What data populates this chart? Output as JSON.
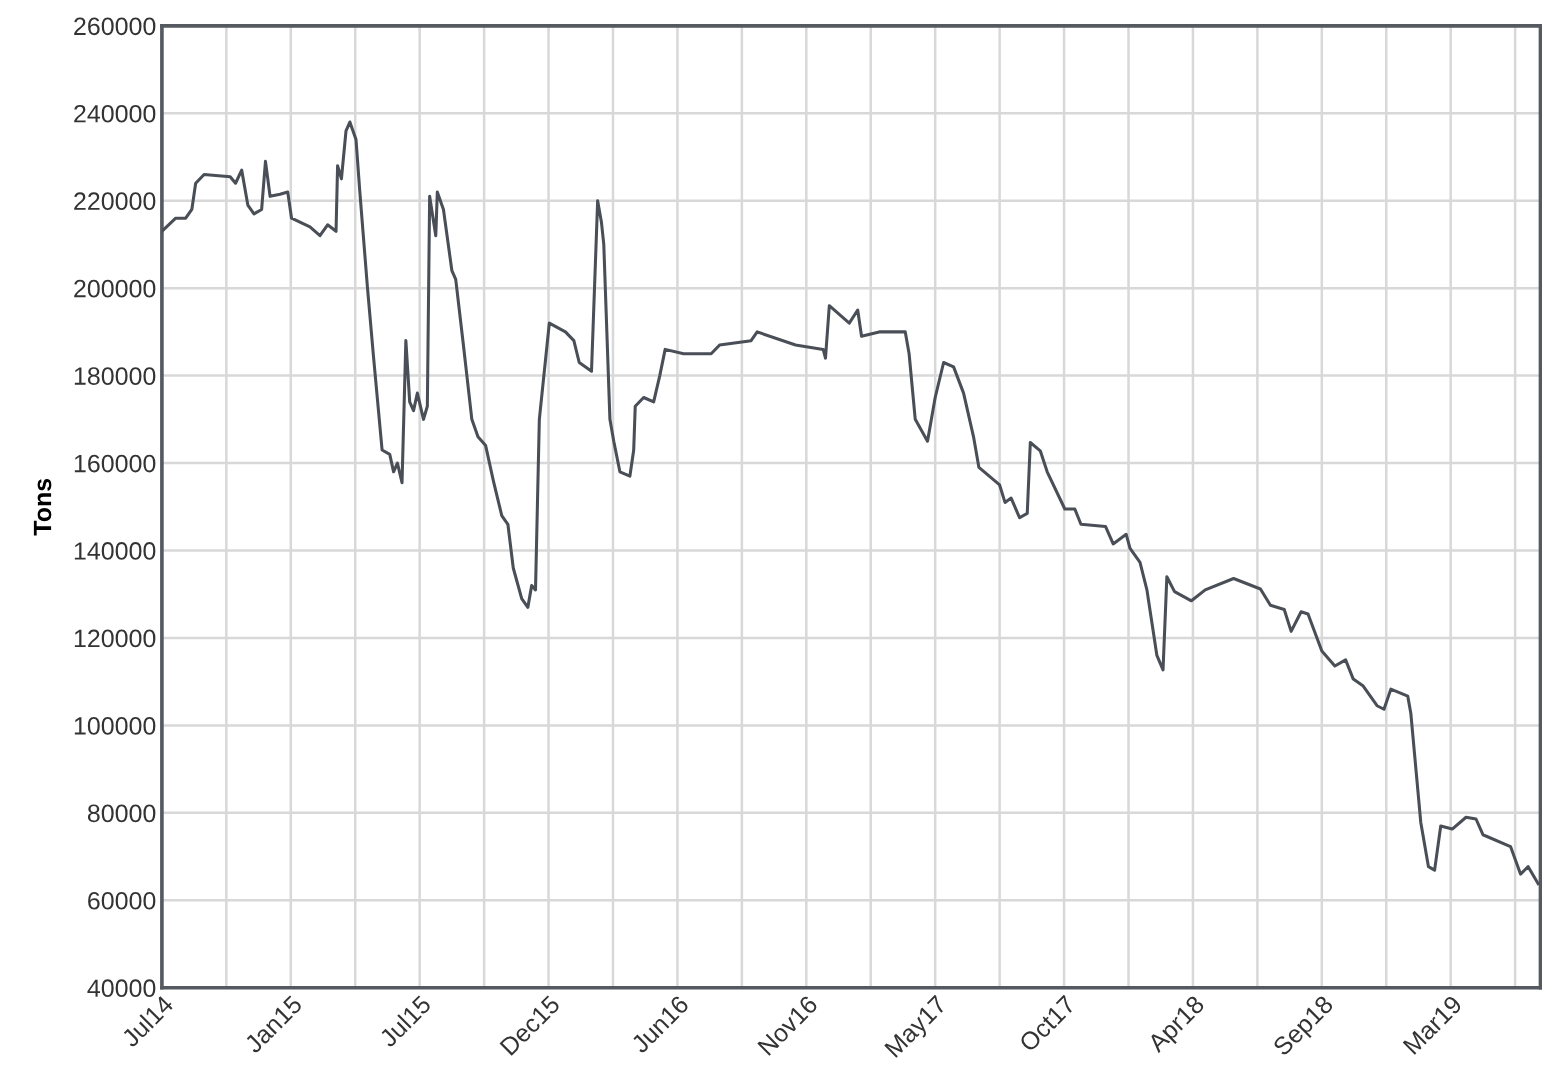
{
  "chart_data": {
    "type": "line",
    "ylabel": "Tons",
    "x": [
      "2014-07-31",
      "2014-08-18",
      "2014-08-31",
      "2014-09-08",
      "2014-09-13",
      "2014-09-24",
      "2014-10-28",
      "2014-11-04",
      "2014-11-12",
      "2014-11-20",
      "2014-11-28",
      "2014-12-08",
      "2014-12-13",
      "2014-12-19",
      "2015-01-01",
      "2015-01-11",
      "2015-01-16",
      "2015-02-09",
      "2015-02-22",
      "2015-03-04",
      "2015-03-15",
      "2015-03-17",
      "2015-03-22",
      "2015-03-28",
      "2015-04-02",
      "2015-04-10",
      "2015-04-15",
      "2015-04-25",
      "2015-05-03",
      "2015-05-14",
      "2015-05-24",
      "2015-05-29",
      "2015-06-03",
      "2015-06-09",
      "2015-06-14",
      "2015-06-19",
      "2015-06-24",
      "2015-06-29",
      "2015-07-07",
      "2015-07-12",
      "2015-07-15",
      "2015-07-23",
      "2015-07-25",
      "2015-08-02",
      "2015-08-13",
      "2015-08-18",
      "2015-08-28",
      "2015-09-08",
      "2015-09-16",
      "2015-09-26",
      "2015-10-06",
      "2015-10-17",
      "2015-10-25",
      "2015-11-01",
      "2015-11-12",
      "2015-11-20",
      "2015-11-25",
      "2015-11-30",
      "2015-12-05",
      "2015-12-18",
      "2016-01-08",
      "2016-01-19",
      "2016-01-26",
      "2016-02-11",
      "2016-02-19",
      "2016-02-24",
      "2016-02-27",
      "2016-03-06",
      "2016-03-11",
      "2016-03-19",
      "2016-04-01",
      "2016-04-06",
      "2016-04-08",
      "2016-04-19",
      "2016-05-02",
      "2016-05-10",
      "2016-05-17",
      "2016-06-10",
      "2016-07-16",
      "2016-07-27",
      "2016-09-06",
      "2016-09-14",
      "2016-11-03",
      "2016-12-09",
      "2016-12-12",
      "2016-12-17",
      "2016-12-30",
      "2017-01-12",
      "2017-01-23",
      "2017-01-28",
      "2017-02-20",
      "2017-03-26",
      "2017-03-31",
      "2017-04-08",
      "2017-04-24",
      "2017-05-04",
      "2017-05-15",
      "2017-05-28",
      "2017-06-10",
      "2017-06-23",
      "2017-06-30",
      "2017-07-27",
      "2017-08-03",
      "2017-08-11",
      "2017-08-22",
      "2017-09-01",
      "2017-09-05",
      "2017-09-18",
      "2017-09-27",
      "2017-10-20",
      "2017-11-02",
      "2017-11-10",
      "2017-12-12",
      "2017-12-22",
      "2018-01-08",
      "2018-01-13",
      "2018-01-26",
      "2018-02-04",
      "2018-02-17",
      "2018-02-25",
      "2018-03-02",
      "2018-03-12",
      "2018-04-03",
      "2018-04-21",
      "2018-05-28",
      "2018-07-02",
      "2018-07-15",
      "2018-08-02",
      "2018-08-11",
      "2018-08-24",
      "2018-09-02",
      "2018-09-20",
      "2018-10-07",
      "2018-10-21",
      "2018-10-31",
      "2018-11-13",
      "2018-12-01",
      "2018-12-10",
      "2018-12-19",
      "2019-01-10",
      "2019-01-14",
      "2019-01-27",
      "2019-02-06",
      "2019-02-14",
      "2019-02-22",
      "2019-03-09",
      "2019-03-27",
      "2019-04-09",
      "2019-04-18",
      "2019-05-24",
      "2019-06-06",
      "2019-06-16",
      "2019-06-29"
    ],
    "series": [
      {
        "color": "#4a4f57",
        "values": [
          213000,
          216000,
          216000,
          218000,
          224000,
          226000,
          225500,
          224000,
          227000,
          219000,
          217000,
          218000,
          229000,
          221000,
          221500,
          222000,
          216000,
          214000,
          212000,
          214500,
          213000,
          228000,
          225000,
          236000,
          238000,
          234000,
          222000,
          200000,
          184000,
          163000,
          162000,
          158000,
          160000,
          155500,
          188000,
          174000,
          172000,
          176000,
          170000,
          173000,
          221000,
          212000,
          222000,
          218000,
          204000,
          202000,
          187000,
          170000,
          166000,
          164000,
          156000,
          148000,
          146000,
          136000,
          129000,
          127000,
          132000,
          131000,
          170000,
          192000,
          190000,
          188000,
          183000,
          181000,
          220000,
          215000,
          210000,
          170000,
          165000,
          158000,
          157000,
          163000,
          173000,
          175000,
          174000,
          180000,
          186000,
          185000,
          185000,
          187000,
          188000,
          190000,
          187000,
          186000,
          184000,
          196000,
          194000,
          192000,
          195000,
          189000,
          190000,
          190000,
          185000,
          170000,
          165000,
          175000,
          183000,
          182000,
          176000,
          166000,
          159000,
          155000,
          151000,
          152000,
          147500,
          148500,
          164700,
          162800,
          158000,
          149500,
          149500,
          146000,
          145500,
          141500,
          143700,
          140500,
          137300,
          131000,
          116000,
          112700,
          134000,
          130600,
          128500,
          131000,
          133600,
          131200,
          127500,
          126500,
          121500,
          126000,
          125500,
          117000,
          113600,
          115000,
          110600,
          109000,
          104500,
          103700,
          108300,
          106700,
          102800,
          77800,
          67700,
          66900,
          77000,
          76300,
          79000,
          78600,
          75000,
          72300,
          66000,
          67700,
          63800
        ]
      }
    ],
    "xlim": [
      "2014-07-31",
      "2019-07-02"
    ],
    "xticks": [
      {
        "value": "2014-07-31",
        "label": "Jul14"
      },
      {
        "value": "2014-10-23",
        "label": null
      },
      {
        "value": "2015-01-15",
        "label": "Jan15"
      },
      {
        "value": "2015-04-09",
        "label": null
      },
      {
        "value": "2015-07-02",
        "label": "Jul15"
      },
      {
        "value": "2015-09-24",
        "label": null
      },
      {
        "value": "2015-12-17",
        "label": "Dec15"
      },
      {
        "value": "2016-03-10",
        "label": null
      },
      {
        "value": "2016-06-02",
        "label": "Jun16"
      },
      {
        "value": "2016-08-25",
        "label": null
      },
      {
        "value": "2016-11-17",
        "label": "Nov16"
      },
      {
        "value": "2017-02-09",
        "label": null
      },
      {
        "value": "2017-05-04",
        "label": "May17"
      },
      {
        "value": "2017-07-27",
        "label": null
      },
      {
        "value": "2017-10-19",
        "label": "Oct17"
      },
      {
        "value": "2018-01-11",
        "label": null
      },
      {
        "value": "2018-04-05",
        "label": "Apr18"
      },
      {
        "value": "2018-06-28",
        "label": null
      },
      {
        "value": "2018-09-20",
        "label": "Sep18"
      },
      {
        "value": "2018-12-13",
        "label": null
      },
      {
        "value": "2019-03-07",
        "label": "Mar19"
      },
      {
        "value": "2019-05-30",
        "label": null
      }
    ],
    "ylim": [
      40000,
      260000
    ],
    "yticks": [
      40000,
      60000,
      80000,
      100000,
      120000,
      140000,
      160000,
      180000,
      200000,
      220000,
      240000,
      260000
    ],
    "grid": true,
    "legend": false,
    "line_style": "solid",
    "marker": "none"
  }
}
